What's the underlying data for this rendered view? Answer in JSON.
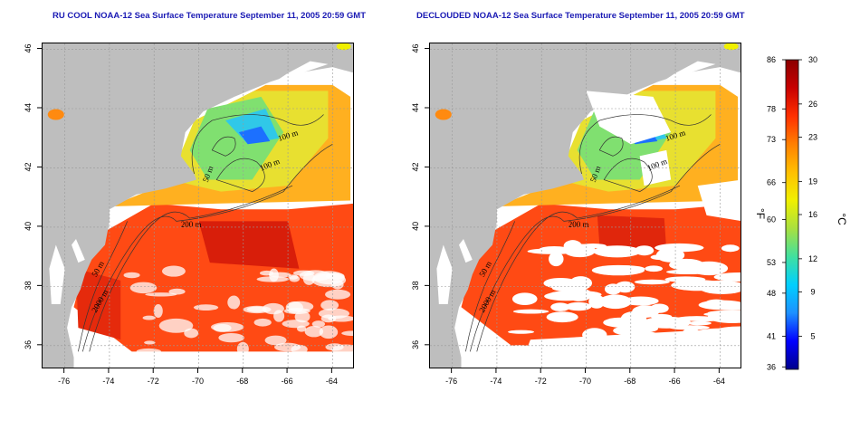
{
  "titles": {
    "left": "RU COOL NOAA-12 Sea Surface Temperature September 11, 2005 20:59 GMT",
    "right": "DECLOUDED NOAA-12 Sea Surface Temperature September 11, 2005 20:59 GMT"
  },
  "axes": {
    "lon_ticks": [
      "-76",
      "-74",
      "-72",
      "-70",
      "-68",
      "-66",
      "-64"
    ],
    "lat_ticks": [
      "36",
      "38",
      "40",
      "42",
      "44",
      "46"
    ],
    "lon_range": [
      -77,
      -63
    ],
    "lat_range": [
      35.2,
      46.2
    ],
    "grid": "dotted"
  },
  "contours": {
    "labels": [
      "100 m",
      "100 m",
      "50 m",
      "200 m",
      "50 m",
      "2000 m"
    ]
  },
  "colorbar": {
    "celsius_ticks": [
      "30",
      "26",
      "23",
      "19",
      "16",
      "12",
      "9",
      "5"
    ],
    "fahrenheit_ticks": [
      "86",
      "78",
      "73",
      "66",
      "60",
      "53",
      "48",
      "41",
      "36"
    ],
    "celsius_unit": "°C",
    "fahrenheit_unit": "°F",
    "range_celsius": [
      2,
      30
    ],
    "colors": [
      "#00008b",
      "#0000ff",
      "#1e90ff",
      "#00cfff",
      "#40e0a0",
      "#a8e040",
      "#f0f000",
      "#ffc000",
      "#ff8000",
      "#ff3000",
      "#c80000",
      "#8b0000"
    ]
  },
  "panels": {
    "left": "raw",
    "right": "declouded"
  }
}
